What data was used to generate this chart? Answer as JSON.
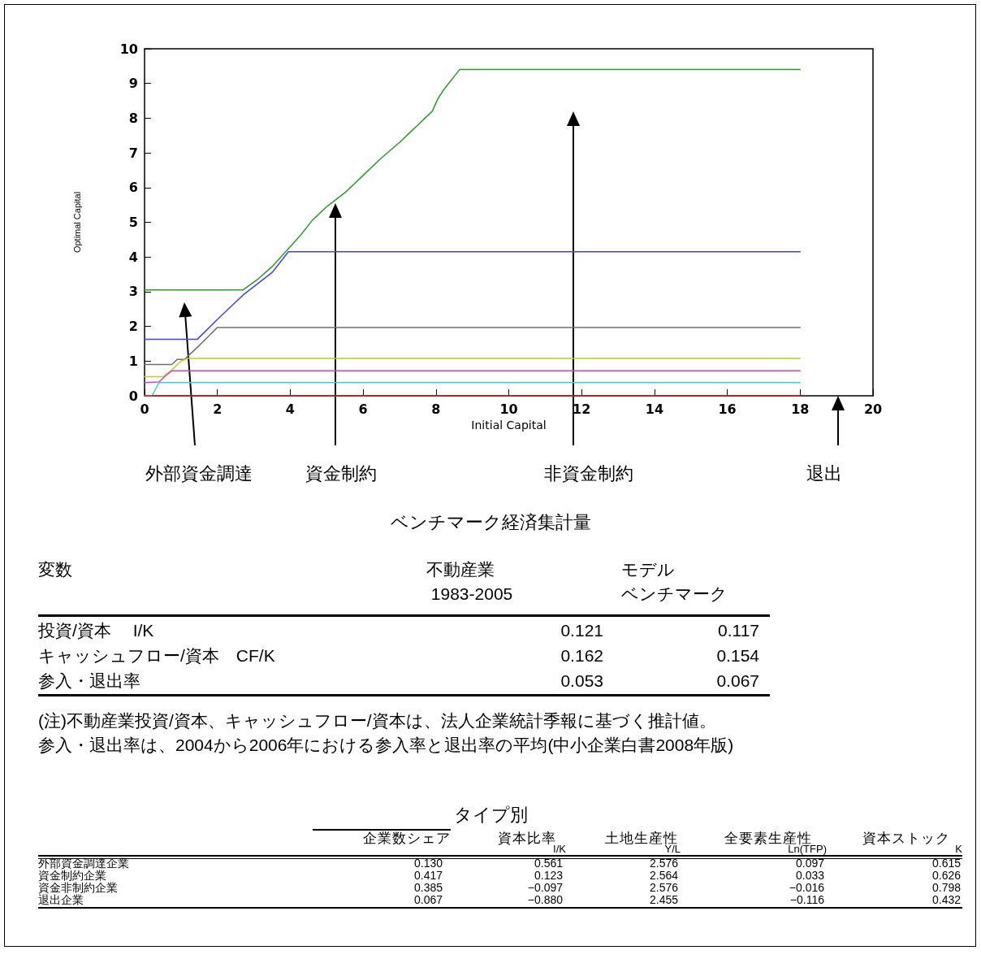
{
  "chart_data": [
    {
      "type": "line",
      "xlabel": "Initial Capital",
      "ylabel": "Optimal Capital",
      "xlim": [
        0,
        20
      ],
      "xticks": [
        0,
        2,
        4,
        6,
        8,
        10,
        12,
        14,
        16,
        18,
        20
      ],
      "ylim": [
        0,
        10
      ],
      "yticks": [
        0,
        1,
        2,
        3,
        4,
        5,
        6,
        7,
        8,
        9,
        10
      ],
      "grid": false,
      "marker": "none",
      "line_style": "solid",
      "annotations": [
        "外部資金調達",
        "資金制約",
        "非資金制約",
        "退出"
      ],
      "series": [
        {
          "color": "#2a9a2a",
          "x": [
            0,
            2.7,
            3.1,
            3.5,
            4,
            4.3,
            4.6,
            5,
            5.5,
            6,
            6.5,
            7,
            7.5,
            7.9,
            8.05,
            8.2,
            8.65,
            18
          ],
          "values": [
            3.05,
            3.05,
            3.35,
            3.72,
            4.3,
            4.65,
            5.05,
            5.45,
            5.85,
            6.35,
            6.85,
            7.3,
            7.8,
            8.2,
            8.55,
            8.8,
            9.4,
            9.4
          ]
        },
        {
          "color": "#4040ff",
          "x": [
            0,
            1.45,
            2,
            2.7,
            3.5,
            3.95,
            18
          ],
          "values": [
            1.63,
            1.63,
            2.2,
            2.9,
            3.55,
            4.15,
            4.15
          ]
        },
        {
          "color": "#707070",
          "x": [
            0,
            0.75,
            0.9,
            1.1,
            1.5,
            2,
            18
          ],
          "values": [
            0.9,
            0.9,
            1.05,
            1.05,
            1.45,
            1.97,
            1.97
          ]
        },
        {
          "color": "#c8c820",
          "x": [
            0,
            0.5,
            0.75,
            1,
            1.2,
            18
          ],
          "values": [
            0.55,
            0.55,
            0.75,
            1,
            1.08,
            1.08
          ]
        },
        {
          "color": "#d040d0",
          "x": [
            0,
            0.4,
            0.55,
            0.75,
            18
          ],
          "values": [
            0.38,
            0.4,
            0.55,
            0.72,
            0.72
          ]
        },
        {
          "color": "#40d0d0",
          "x": [
            0,
            0.2,
            0.4,
            18
          ],
          "values": [
            0,
            0,
            0.38,
            0.38
          ]
        },
        {
          "color": "#e02020",
          "x": [
            0,
            18
          ],
          "values": [
            0,
            0
          ]
        }
      ]
    },
    {
      "type": "other",
      "title": "ベンチマーク経済集計量",
      "ylabel": "変数",
      "categories": [
        "投資/資本　 I/K",
        "キャッシュフロー/資本　CF/K",
        "参入・退出率"
      ],
      "annotations": [
        "(注)不動産業投資/資本、キャッシュフロー/資本は、法人企業統計季報に基づく推計値。",
        "参入・退出率は、2004から2006年における参入率と退出率の平均(中小企業白書2008年版)"
      ],
      "series": [
        {
          "name": "不動産業\n 1983-2005",
          "values": [
            0.121,
            0.162,
            0.053
          ],
          "value_labels": [
            "0.121",
            "0.162",
            "0.053"
          ]
        },
        {
          "name": "モデルベンチマーク",
          "values": [
            0.117,
            0.154,
            0.067
          ],
          "value_labels": [
            "0.117",
            "0.154",
            "0.067"
          ]
        }
      ]
    },
    {
      "type": "other",
      "title": "タイプ別",
      "categories": [
        "外部資金調達企業",
        "資金制約企業",
        "資金非制約企業",
        "退出企業"
      ],
      "series": [
        {
          "name": "企業数シェア",
          "values": [
            0.13,
            0.417,
            0.385,
            0.067
          ],
          "value_labels": [
            "0.130",
            "0.417",
            "0.385",
            "0.067"
          ]
        },
        {
          "name": "資本比率\nI/K",
          "values": [
            0.561,
            0.123,
            -0.097,
            -0.88
          ],
          "value_labels": [
            "0.561",
            "0.123",
            "−0.097",
            "−0.880"
          ]
        },
        {
          "name": "土地生産性\nY/L",
          "values": [
            2.576,
            2.564,
            2.576,
            2.455
          ],
          "value_labels": [
            "2.576",
            "2.564",
            "2.576",
            "2.455"
          ]
        },
        {
          "name": "全要素生産性\nLn(TFP)",
          "values": [
            0.097,
            0.033,
            -0.016,
            -0.116
          ],
          "value_labels": [
            "0.097",
            "0.033",
            "−0.016",
            "−0.116"
          ]
        },
        {
          "name": "資本ストック\nK",
          "values": [
            0.615,
            0.626,
            0.798,
            0.432
          ],
          "value_labels": [
            "0.615",
            "0.626",
            "0.798",
            "0.432"
          ]
        }
      ]
    }
  ]
}
